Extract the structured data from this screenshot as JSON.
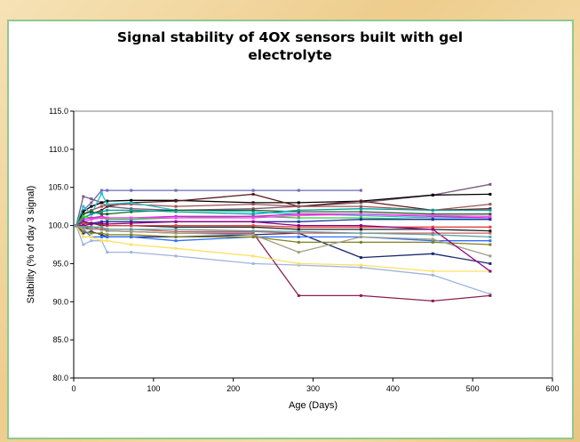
{
  "chart_data": {
    "type": "line",
    "title_line1": "Signal stability of 4OX sensors built with gel",
    "title_line2": "electrolyte",
    "xlabel": "Age (Days)",
    "ylabel": "Stability (% of day 3 signal)",
    "xlim": [
      0,
      600
    ],
    "ylim": [
      80,
      115
    ],
    "x_ticks": [
      0,
      100,
      200,
      300,
      400,
      500,
      600
    ],
    "y_ticks": [
      80.0,
      85.0,
      90.0,
      95.0,
      100.0,
      105.0,
      110.0,
      115.0
    ],
    "y_tick_labels": [
      "80.0",
      "85.0",
      "90.0",
      "95.0",
      "100.0",
      "105.0",
      "110.0",
      "115.0"
    ],
    "grid": false,
    "legend": "none",
    "x": [
      3,
      12,
      22,
      35,
      42,
      72,
      128,
      225,
      282,
      360,
      450,
      522
    ],
    "series": [
      {
        "color": "#6b6bb8",
        "values": [
          100.0,
          102.0,
          103.0,
          104.6,
          104.6,
          104.6,
          104.6,
          104.6,
          104.6,
          104.6,
          null,
          null
        ]
      },
      {
        "color": "#7b5a7b",
        "values": [
          100.0,
          103.8,
          103.5,
          103.0,
          102.5,
          102.2,
          102.0,
          102.2,
          102.5,
          103.0,
          104.0,
          105.4
        ]
      },
      {
        "color": "#000000",
        "values": [
          100.0,
          101.8,
          102.5,
          103.0,
          103.2,
          103.3,
          103.3,
          103.0,
          103.0,
          103.2,
          104.0,
          104.1
        ]
      },
      {
        "color": "#5a1a1a",
        "values": [
          100.0,
          101.0,
          101.5,
          102.0,
          102.5,
          103.0,
          103.2,
          104.1,
          102.5,
          103.2,
          102.0,
          102.2
        ]
      },
      {
        "color": "#a05050",
        "values": [
          100.0,
          101.5,
          102.0,
          102.5,
          102.7,
          102.8,
          102.5,
          102.8,
          102.5,
          102.5,
          102.0,
          102.8
        ]
      },
      {
        "color": "#20c0d0",
        "values": [
          100.0,
          102.5,
          101.5,
          104.2,
          102.8,
          103.0,
          102.0,
          101.8,
          101.5,
          101.3,
          101.0,
          101.0
        ]
      },
      {
        "color": "#206020",
        "values": [
          100.0,
          101.5,
          101.8,
          101.5,
          101.5,
          101.8,
          102.0,
          102.0,
          101.8,
          101.8,
          101.5,
          101.5
        ]
      },
      {
        "color": "#00a0a0",
        "values": [
          100.0,
          101.0,
          101.5,
          101.8,
          102.0,
          102.0,
          101.8,
          101.5,
          102.0,
          102.2,
          102.0,
          102.0
        ]
      },
      {
        "color": "#30d030",
        "values": [
          100.0,
          101.2,
          101.0,
          101.0,
          100.8,
          100.8,
          101.0,
          101.2,
          101.0,
          101.0,
          100.8,
          100.8
        ]
      },
      {
        "color": "#c030c0",
        "values": [
          100.0,
          100.8,
          101.0,
          101.2,
          101.0,
          101.0,
          101.2,
          101.2,
          101.5,
          101.5,
          101.2,
          101.0
        ]
      },
      {
        "color": "#ff40ff",
        "values": [
          100.0,
          100.5,
          100.8,
          101.0,
          101.0,
          101.0,
          101.0,
          101.0,
          101.3,
          101.5,
          101.3,
          101.2
        ]
      },
      {
        "color": "#2030a0",
        "values": [
          100.0,
          100.5,
          100.3,
          100.5,
          100.5,
          100.5,
          100.5,
          100.5,
          100.5,
          100.8,
          100.8,
          100.8
        ]
      },
      {
        "color": "#1a2a70",
        "values": [
          100.0,
          99.0,
          99.2,
          98.8,
          98.5,
          98.5,
          98.5,
          98.8,
          99.0,
          95.8,
          96.3,
          95.0
        ]
      },
      {
        "color": "#3070ff",
        "values": [
          100.0,
          99.5,
          98.5,
          98.5,
          98.5,
          98.5,
          98.0,
          98.5,
          98.5,
          98.5,
          98.0,
          98.0
        ]
      },
      {
        "color": "#a0b4e0",
        "values": [
          100.0,
          97.5,
          98.0,
          98.0,
          96.5,
          96.5,
          96.0,
          95.0,
          94.8,
          94.5,
          93.5,
          91.0
        ]
      },
      {
        "color": "#8a2050",
        "values": [
          100.0,
          99.8,
          99.5,
          99.5,
          99.3,
          99.2,
          99.0,
          99.0,
          90.8,
          90.8,
          90.1,
          90.8
        ]
      },
      {
        "color": "#ffe060",
        "values": [
          100.0,
          98.5,
          98.5,
          98.0,
          98.0,
          97.5,
          97.0,
          96.0,
          95.0,
          94.8,
          94.0,
          94.0
        ]
      },
      {
        "color": "#808020",
        "values": [
          100.0,
          99.2,
          99.0,
          99.0,
          98.8,
          98.8,
          98.5,
          98.5,
          97.8,
          97.8,
          97.8,
          97.5
        ]
      },
      {
        "color": "#a0a080",
        "values": [
          100.0,
          99.5,
          99.5,
          99.5,
          99.3,
          99.2,
          99.0,
          98.8,
          96.5,
          98.5,
          98.2,
          96.0
        ]
      },
      {
        "color": "#c06060",
        "values": [
          100.0,
          100.0,
          99.8,
          99.5,
          99.5,
          99.5,
          99.2,
          99.2,
          99.0,
          99.0,
          99.0,
          99.0
        ]
      },
      {
        "color": "#202020",
        "values": [
          100.0,
          100.3,
          100.3,
          100.0,
          100.0,
          100.0,
          99.8,
          99.8,
          99.5,
          99.5,
          99.5,
          99.3
        ]
      },
      {
        "color": "#e04040",
        "values": [
          100.0,
          100.3,
          100.2,
          100.2,
          100.0,
          100.0,
          100.0,
          100.0,
          99.8,
          99.8,
          99.8,
          99.8
        ]
      },
      {
        "color": "#8a0080",
        "values": [
          100.0,
          100.0,
          100.2,
          100.3,
          100.2,
          100.3,
          100.5,
          100.5,
          100.0,
          100.0,
          99.5,
          94.0
        ]
      },
      {
        "color": "#60a0a0",
        "values": [
          100.0,
          99.8,
          99.8,
          99.8,
          99.5,
          99.5,
          99.5,
          99.3,
          99.2,
          99.0,
          98.8,
          98.5
        ]
      }
    ]
  }
}
